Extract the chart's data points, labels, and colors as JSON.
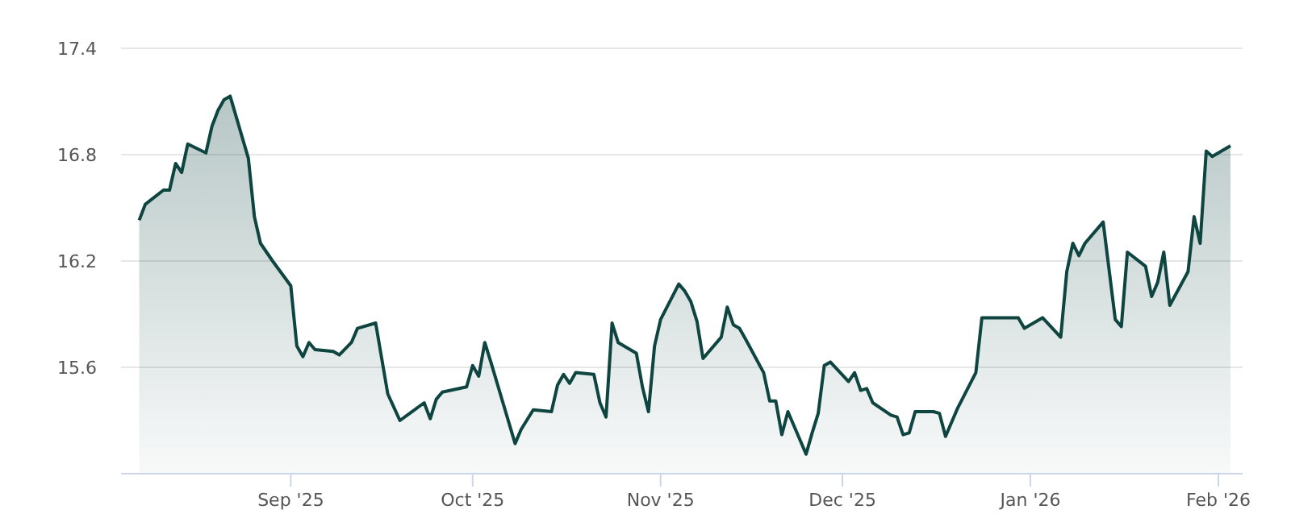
{
  "chart_data": {
    "type": "area",
    "x": [
      "2025-08-07",
      "2025-08-08",
      "2025-08-11",
      "2025-08-12",
      "2025-08-13",
      "2025-08-14",
      "2025-08-15",
      "2025-08-18",
      "2025-08-19",
      "2025-08-20",
      "2025-08-21",
      "2025-08-22",
      "2025-08-25",
      "2025-08-26",
      "2025-08-27",
      "2025-08-29",
      "2025-09-01",
      "2025-09-02",
      "2025-09-03",
      "2025-09-04",
      "2025-09-05",
      "2025-09-08",
      "2025-09-09",
      "2025-09-11",
      "2025-09-12",
      "2025-09-15",
      "2025-09-17",
      "2025-09-19",
      "2025-09-23",
      "2025-09-24",
      "2025-09-25",
      "2025-09-26",
      "2025-09-30",
      "2025-10-01",
      "2025-10-02",
      "2025-10-03",
      "2025-10-04",
      "2025-10-08",
      "2025-10-09",
      "2025-10-11",
      "2025-10-14",
      "2025-10-15",
      "2025-10-16",
      "2025-10-17",
      "2025-10-18",
      "2025-10-21",
      "2025-10-22",
      "2025-10-23",
      "2025-10-24",
      "2025-10-25",
      "2025-10-28",
      "2025-10-29",
      "2025-10-30",
      "2025-10-31",
      "2025-11-01",
      "2025-11-04",
      "2025-11-05",
      "2025-11-06",
      "2025-11-07",
      "2025-11-08",
      "2025-11-11",
      "2025-11-12",
      "2025-11-13",
      "2025-11-14",
      "2025-11-15",
      "2025-11-18",
      "2025-11-19",
      "2025-11-20",
      "2025-11-21",
      "2025-11-22",
      "2025-11-25",
      "2025-11-26",
      "2025-11-27",
      "2025-11-28",
      "2025-11-29",
      "2025-12-02",
      "2025-12-03",
      "2025-12-04",
      "2025-12-05",
      "2025-12-06",
      "2025-12-09",
      "2025-12-10",
      "2025-12-11",
      "2025-12-12",
      "2025-12-13",
      "2025-12-16",
      "2025-12-17",
      "2025-12-18",
      "2025-12-20",
      "2025-12-23",
      "2025-12-24",
      "2025-12-30",
      "2025-12-31",
      "2026-01-03",
      "2026-01-06",
      "2026-01-07",
      "2026-01-08",
      "2026-01-09",
      "2026-01-10",
      "2026-01-13",
      "2026-01-15",
      "2026-01-16",
      "2026-01-17",
      "2026-01-20",
      "2026-01-21",
      "2026-01-22",
      "2026-01-23",
      "2026-01-24",
      "2026-01-27",
      "2026-01-28",
      "2026-01-29",
      "2026-01-30",
      "2026-01-31",
      "2026-02-03"
    ],
    "series": [
      {
        "color": "#0e4540",
        "values": [
          16.43,
          16.52,
          16.6,
          16.6,
          16.75,
          16.7,
          16.86,
          16.81,
          16.96,
          17.05,
          17.11,
          17.13,
          16.78,
          16.45,
          16.3,
          16.2,
          16.06,
          15.72,
          15.66,
          15.74,
          15.7,
          15.69,
          15.67,
          15.74,
          15.82,
          15.85,
          15.45,
          15.3,
          15.4,
          15.31,
          15.42,
          15.46,
          15.49,
          15.61,
          15.55,
          15.74,
          15.63,
          15.17,
          15.25,
          15.36,
          15.35,
          15.5,
          15.56,
          15.51,
          15.57,
          15.56,
          15.4,
          15.32,
          15.85,
          15.74,
          15.68,
          15.49,
          15.35,
          15.72,
          15.87,
          16.07,
          16.03,
          15.97,
          15.86,
          15.65,
          15.77,
          15.94,
          15.84,
          15.82,
          15.76,
          15.57,
          15.41,
          15.41,
          15.22,
          15.35,
          15.11,
          15.23,
          15.34,
          15.61,
          15.63,
          15.52,
          15.57,
          15.47,
          15.48,
          15.4,
          15.33,
          15.32,
          15.22,
          15.23,
          15.35,
          15.35,
          15.34,
          15.21,
          15.37,
          15.57,
          15.88,
          15.88,
          15.82,
          15.88,
          15.77,
          16.14,
          16.3,
          16.23,
          16.3,
          16.42,
          15.87,
          15.83,
          16.25,
          16.17,
          16.0,
          16.08,
          16.25,
          15.95,
          16.14,
          16.45,
          16.3,
          16.82,
          16.79,
          16.85
        ]
      }
    ],
    "xlim": [
      "2025-08-04",
      "2026-02-05"
    ],
    "xticks": [
      {
        "value": "2025-09-01",
        "label": "Sep '25"
      },
      {
        "value": "2025-10-01",
        "label": "Oct '25"
      },
      {
        "value": "2025-11-01",
        "label": "Nov '25"
      },
      {
        "value": "2025-12-01",
        "label": "Dec '25"
      },
      {
        "value": "2026-01-01",
        "label": "Jan '26"
      },
      {
        "value": "2026-02-01",
        "label": "Feb '26"
      }
    ],
    "ylim": [
      15.0,
      17.4
    ],
    "yticks": [
      15.6,
      16.2,
      16.8,
      17.4
    ],
    "grid": "y"
  }
}
